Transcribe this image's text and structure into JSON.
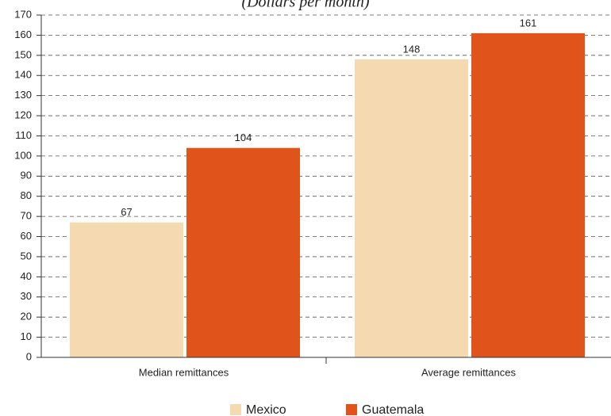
{
  "chart_data": {
    "type": "bar",
    "subtitle": "(Dollars per month)",
    "categories": [
      "Median remittances",
      "Average remittances"
    ],
    "series": [
      {
        "name": "Mexico",
        "color": "#f5d9b0",
        "values": [
          67,
          148
        ]
      },
      {
        "name": "Guatemala",
        "color": "#e0541b",
        "values": [
          104,
          161
        ]
      }
    ],
    "ylim": [
      0,
      170
    ],
    "yticks": [
      0,
      10,
      20,
      30,
      40,
      50,
      60,
      70,
      80,
      90,
      100,
      110,
      120,
      130,
      140,
      150,
      160,
      170
    ],
    "grid": true
  }
}
